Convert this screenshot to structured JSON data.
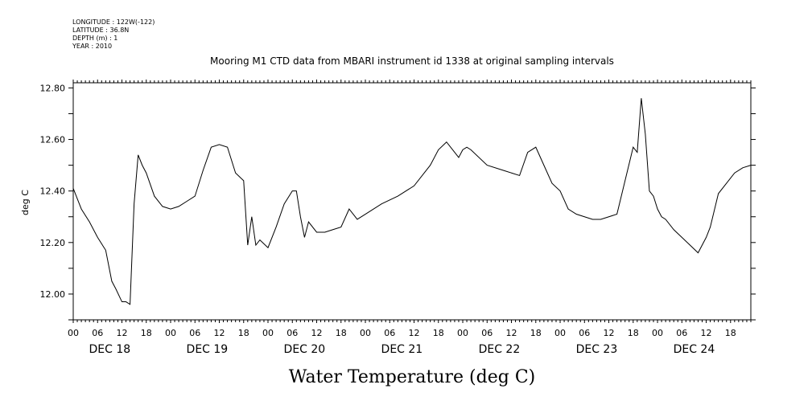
{
  "chart_data": {
    "type": "line",
    "title": "Mooring M1 CTD data from MBARI instrument id 1338 at original sampling intervals",
    "header_lines": [
      "LONGITUDE : 122W(-122)",
      "LATITUDE : 36.8N",
      "DEPTH (m) : 1",
      "YEAR : 2010"
    ],
    "xlabel": "Water Temperature (deg C)",
    "ylabel": "deg C",
    "ylim": [
      11.9,
      12.82
    ],
    "xlim": [
      "2010-12-18 00:00",
      "2010-12-24 23:00"
    ],
    "yticks": [
      "12.00",
      "12.20",
      "12.40",
      "12.60",
      "12.80"
    ],
    "hour_ticks": [
      "00",
      "06",
      "12",
      "18"
    ],
    "day_labels": [
      "DEC 18",
      "DEC 19",
      "DEC 20",
      "DEC 21",
      "DEC 22",
      "DEC 23",
      "DEC 24"
    ],
    "grid": false,
    "series": [
      {
        "x": [
          "2010-12-18 00:00",
          "2010-12-18 02:00",
          "2010-12-18 04:00",
          "2010-12-18 06:00",
          "2010-12-18 08:00",
          "2010-12-18 09:30",
          "2010-12-18 10:30",
          "2010-12-18 12:00",
          "2010-12-18 13:00",
          "2010-12-18 14:00",
          "2010-12-18 15:00",
          "2010-12-18 16:00",
          "2010-12-18 17:00",
          "2010-12-18 18:00",
          "2010-12-18 20:00",
          "2010-12-18 22:00",
          "2010-12-19 00:00",
          "2010-12-19 02:00",
          "2010-12-19 04:00",
          "2010-12-19 06:00",
          "2010-12-19 08:00",
          "2010-12-19 10:00",
          "2010-12-19 12:00",
          "2010-12-19 14:00",
          "2010-12-19 16:00",
          "2010-12-19 18:00",
          "2010-12-19 19:00",
          "2010-12-19 20:00",
          "2010-12-19 21:00",
          "2010-12-19 22:00",
          "2010-12-20 00:00",
          "2010-12-20 02:00",
          "2010-12-20 04:00",
          "2010-12-20 06:00",
          "2010-12-20 07:00",
          "2010-12-20 08:00",
          "2010-12-20 09:00",
          "2010-12-20 10:00",
          "2010-12-20 12:00",
          "2010-12-20 14:00",
          "2010-12-20 16:00",
          "2010-12-20 18:00",
          "2010-12-20 20:00",
          "2010-12-20 22:00",
          "2010-12-21 00:00",
          "2010-12-21 04:00",
          "2010-12-21 08:00",
          "2010-12-21 12:00",
          "2010-12-21 16:00",
          "2010-12-21 18:00",
          "2010-12-21 20:00",
          "2010-12-21 23:00",
          "2010-12-22 00:00",
          "2010-12-22 01:00",
          "2010-12-22 02:00",
          "2010-12-22 06:00",
          "2010-12-22 10:00",
          "2010-12-22 14:00",
          "2010-12-22 16:00",
          "2010-12-22 18:00",
          "2010-12-22 20:00",
          "2010-12-22 22:00",
          "2010-12-23 00:00",
          "2010-12-23 02:00",
          "2010-12-23 04:00",
          "2010-12-23 06:00",
          "2010-12-23 08:00",
          "2010-12-23 10:00",
          "2010-12-23 14:00",
          "2010-12-23 18:00",
          "2010-12-23 19:00",
          "2010-12-23 20:00",
          "2010-12-23 21:00",
          "2010-12-23 22:00",
          "2010-12-23 23:00",
          "2010-12-24 00:00",
          "2010-12-24 01:00",
          "2010-12-24 02:00",
          "2010-12-24 04:00",
          "2010-12-24 06:00",
          "2010-12-24 08:00",
          "2010-12-24 10:00",
          "2010-12-24 12:00",
          "2010-12-24 13:00",
          "2010-12-24 15:00",
          "2010-12-24 17:00",
          "2010-12-24 19:00",
          "2010-12-24 21:00",
          "2010-12-24 23:00"
        ],
        "values": [
          12.41,
          12.33,
          12.28,
          12.22,
          12.17,
          12.05,
          12.02,
          11.97,
          11.97,
          11.96,
          12.35,
          12.54,
          12.5,
          12.47,
          12.38,
          12.34,
          12.33,
          12.34,
          12.36,
          12.38,
          12.48,
          12.57,
          12.58,
          12.57,
          12.47,
          12.44,
          12.19,
          12.3,
          12.19,
          12.21,
          12.18,
          12.26,
          12.35,
          12.4,
          12.4,
          12.3,
          12.22,
          12.28,
          12.24,
          12.24,
          12.25,
          12.26,
          12.33,
          12.29,
          12.31,
          12.35,
          12.38,
          12.42,
          12.5,
          12.56,
          12.59,
          12.53,
          12.56,
          12.57,
          12.56,
          12.5,
          12.48,
          12.46,
          12.55,
          12.57,
          12.5,
          12.43,
          12.4,
          12.33,
          12.31,
          12.3,
          12.29,
          12.29,
          12.31,
          12.57,
          12.55,
          12.76,
          12.62,
          12.4,
          12.38,
          12.33,
          12.3,
          12.29,
          12.25,
          12.22,
          12.19,
          12.16,
          12.22,
          12.26,
          12.39,
          12.43,
          12.47,
          12.49,
          12.5
        ]
      }
    ]
  }
}
